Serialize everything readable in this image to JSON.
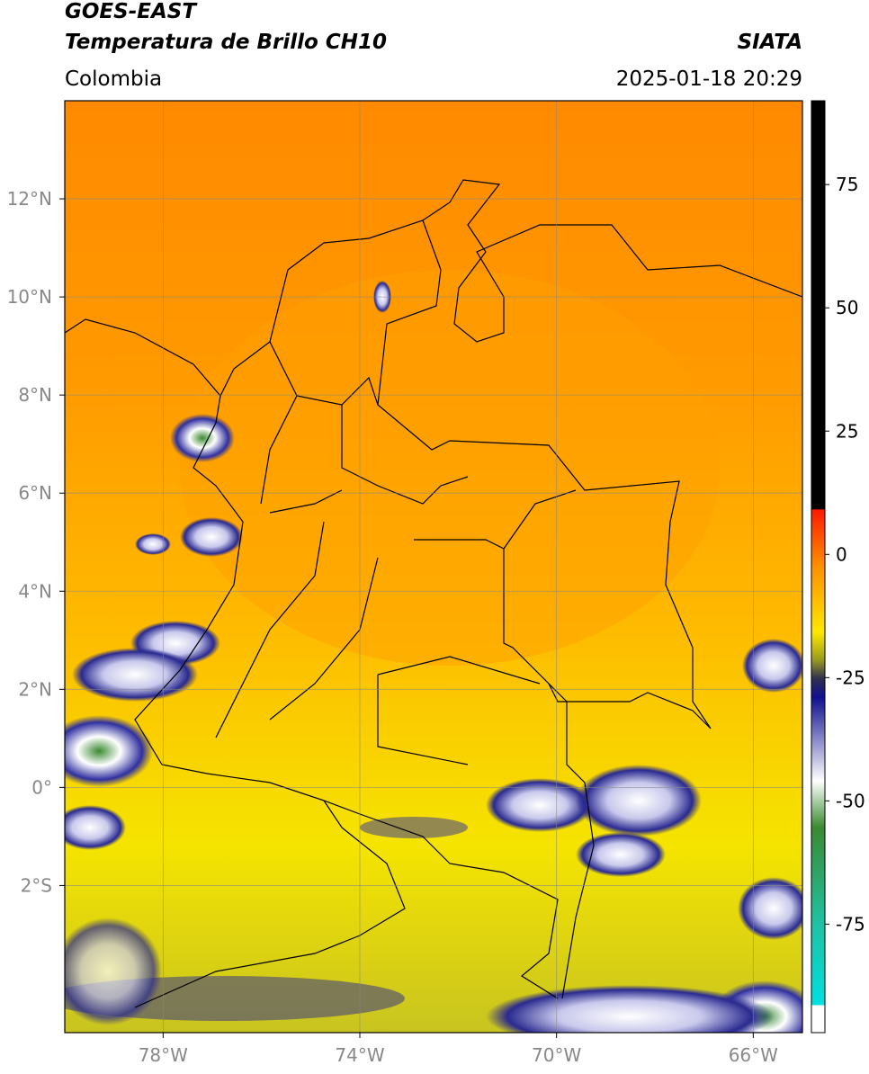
{
  "header": {
    "title": "GOES-EAST",
    "subtitle": "Temperatura de Brillo CH10",
    "source": "SIATA",
    "region": "Colombia",
    "timestamp": "2025-01-18 20:29"
  },
  "map": {
    "xlim": [
      -80,
      -65
    ],
    "ylim": [
      -5,
      14
    ],
    "xticks": [
      {
        "value": -78,
        "label": "78°W"
      },
      {
        "value": -74,
        "label": "74°W"
      },
      {
        "value": -70,
        "label": "70°W"
      },
      {
        "value": -66,
        "label": "66°W"
      }
    ],
    "yticks": [
      {
        "value": 12,
        "label": "12°N"
      },
      {
        "value": 10,
        "label": "10°N"
      },
      {
        "value": 8,
        "label": "8°N"
      },
      {
        "value": 6,
        "label": "6°N"
      },
      {
        "value": 4,
        "label": "4°N"
      },
      {
        "value": 2,
        "label": "2°N"
      },
      {
        "value": 0,
        "label": "0°"
      },
      {
        "value": -2,
        "label": "2°S"
      }
    ],
    "grid": true
  },
  "colorbar": {
    "ylim": [
      -97,
      92
    ],
    "yticks": [
      75,
      50,
      25,
      0,
      -25,
      -50,
      -75
    ]
  }
}
